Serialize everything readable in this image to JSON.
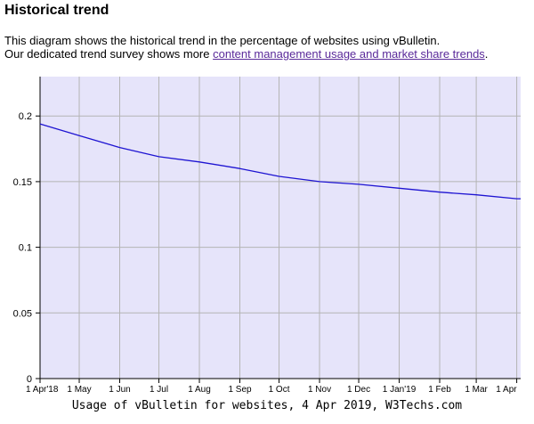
{
  "header": {
    "title": "Historical trend"
  },
  "intro": {
    "line1": "This diagram shows the historical trend in the percentage of websites using vBulletin.",
    "line2_prefix": "Our dedicated trend survey shows more ",
    "link_label": "content management usage and market share trends",
    "line2_suffix": "."
  },
  "colors": {
    "plot_background": "#e6e4fa",
    "grid": "#b4b4b4",
    "line": "#1e14d2",
    "link": "#5a2a9a"
  },
  "chart_data": {
    "type": "line",
    "title": "",
    "xlabel": "",
    "ylabel": "",
    "caption": "Usage of vBulletin for websites, 4 Apr 2019, W3Techs.com",
    "ylim": [
      0,
      0.23
    ],
    "grid": true,
    "legend": "none",
    "yticks": [
      0,
      0.05,
      0.1,
      0.15,
      0.2
    ],
    "ytick_labels": [
      "0",
      "0.05",
      "0.1",
      "0.15",
      "0.2"
    ],
    "x_tick_labels": [
      "1 Apr'18",
      "1 May",
      "1 Jun",
      "1 Jul",
      "1 Aug",
      "1 Sep",
      "1 Oct",
      "1 Nov",
      "1 Dec",
      "1 Jan'19",
      "1 Feb",
      "1 Mar",
      "1 Apr"
    ],
    "x_tick_dates": [
      "2018-04-01",
      "2018-05-01",
      "2018-06-01",
      "2018-07-01",
      "2018-08-01",
      "2018-09-01",
      "2018-10-01",
      "2018-11-01",
      "2018-12-01",
      "2019-01-01",
      "2019-02-01",
      "2019-03-01",
      "2019-04-01"
    ],
    "x_end": "2019-04-04",
    "series": [
      {
        "values": [
          {
            "x": "2018-04-01",
            "y": 0.194
          },
          {
            "x": "2018-05-01",
            "y": 0.185
          },
          {
            "x": "2018-06-01",
            "y": 0.176
          },
          {
            "x": "2018-07-01",
            "y": 0.169
          },
          {
            "x": "2018-08-01",
            "y": 0.165
          },
          {
            "x": "2018-09-01",
            "y": 0.16
          },
          {
            "x": "2018-10-01",
            "y": 0.154
          },
          {
            "x": "2018-11-01",
            "y": 0.15
          },
          {
            "x": "2018-12-01",
            "y": 0.148
          },
          {
            "x": "2019-01-01",
            "y": 0.145
          },
          {
            "x": "2019-02-01",
            "y": 0.142
          },
          {
            "x": "2019-03-01",
            "y": 0.14
          },
          {
            "x": "2019-04-01",
            "y": 0.137
          },
          {
            "x": "2019-04-04",
            "y": 0.137
          }
        ]
      }
    ]
  }
}
